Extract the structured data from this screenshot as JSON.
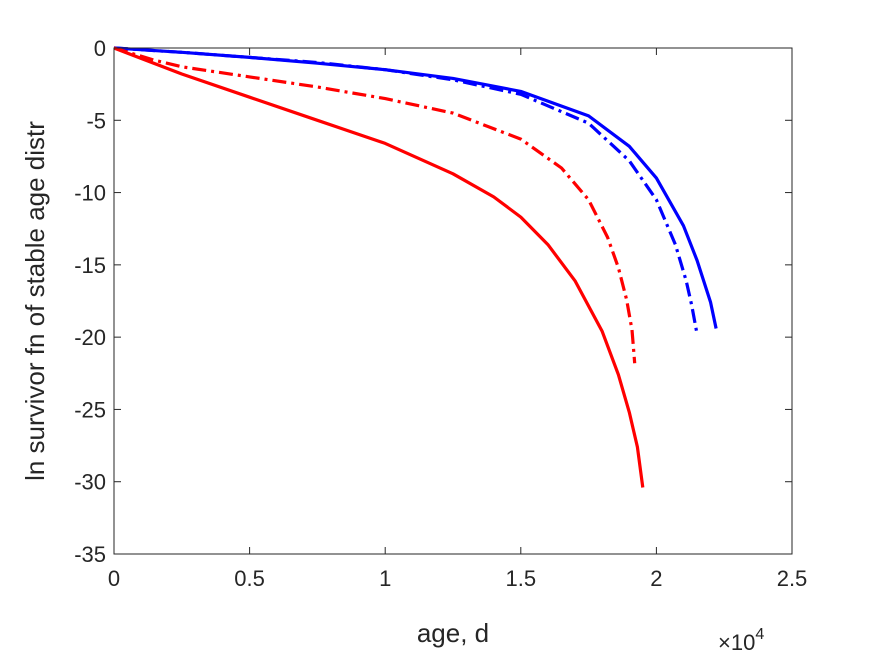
{
  "chart_data": {
    "type": "line",
    "title": "",
    "xlabel": "age, d",
    "ylabel": "ln survivor fn of stable age distr",
    "x_exponent_label": "×10",
    "x_exponent_power": "4",
    "xlim": [
      0,
      2.5
    ],
    "ylim": [
      -35,
      0
    ],
    "x_ticks": [
      0,
      0.5,
      1,
      1.5,
      2,
      2.5
    ],
    "x_tick_labels": [
      "0",
      "0.5",
      "1",
      "1.5",
      "2",
      "2.5"
    ],
    "y_ticks": [
      0,
      -5,
      -10,
      -15,
      -20,
      -25,
      -30,
      -35
    ],
    "y_tick_labels": [
      "0",
      "-5",
      "-10",
      "-15",
      "-20",
      "-25",
      "-30",
      "-35"
    ],
    "grid": false,
    "legend": "none",
    "series": [
      {
        "color": "#0000ff",
        "line_style": "solid",
        "x": [
          0,
          0.25,
          0.5,
          0.75,
          1.0,
          1.25,
          1.5,
          1.75,
          1.9,
          2.0,
          2.1,
          2.15,
          2.2,
          2.22
        ],
        "y": [
          0,
          -0.3,
          -0.65,
          -1.05,
          -1.5,
          -2.1,
          -3.0,
          -4.7,
          -6.8,
          -9.0,
          -12.3,
          -14.7,
          -17.6,
          -19.4
        ]
      },
      {
        "color": "#0000ff",
        "line_style": "dashdot",
        "x": [
          0,
          0.25,
          0.5,
          0.75,
          1.0,
          1.25,
          1.5,
          1.75,
          1.9,
          2.0,
          2.07,
          2.11,
          2.13,
          2.15
        ],
        "y": [
          0,
          -0.3,
          -0.65,
          -1.0,
          -1.5,
          -2.2,
          -3.2,
          -5.2,
          -7.8,
          -10.5,
          -13.6,
          -16.1,
          -17.8,
          -19.8
        ]
      },
      {
        "color": "#ff0000",
        "line_style": "dashdot",
        "x": [
          0,
          0.15,
          0.25,
          0.5,
          0.75,
          1.0,
          1.25,
          1.5,
          1.65,
          1.75,
          1.82,
          1.86,
          1.89,
          1.91,
          1.92
        ],
        "y": [
          0,
          -0.85,
          -1.3,
          -2.0,
          -2.7,
          -3.5,
          -4.5,
          -6.3,
          -8.3,
          -10.5,
          -13.1,
          -15.2,
          -17.4,
          -19.5,
          -21.8
        ]
      },
      {
        "color": "#ff0000",
        "line_style": "solid",
        "x": [
          0,
          0.25,
          0.5,
          0.75,
          1.0,
          1.25,
          1.4,
          1.5,
          1.6,
          1.7,
          1.8,
          1.86,
          1.9,
          1.93,
          1.95
        ],
        "y": [
          0,
          -1.8,
          -3.4,
          -5.0,
          -6.6,
          -8.7,
          -10.3,
          -11.7,
          -13.6,
          -16.1,
          -19.6,
          -22.6,
          -25.2,
          -27.6,
          -30.4
        ]
      }
    ]
  }
}
